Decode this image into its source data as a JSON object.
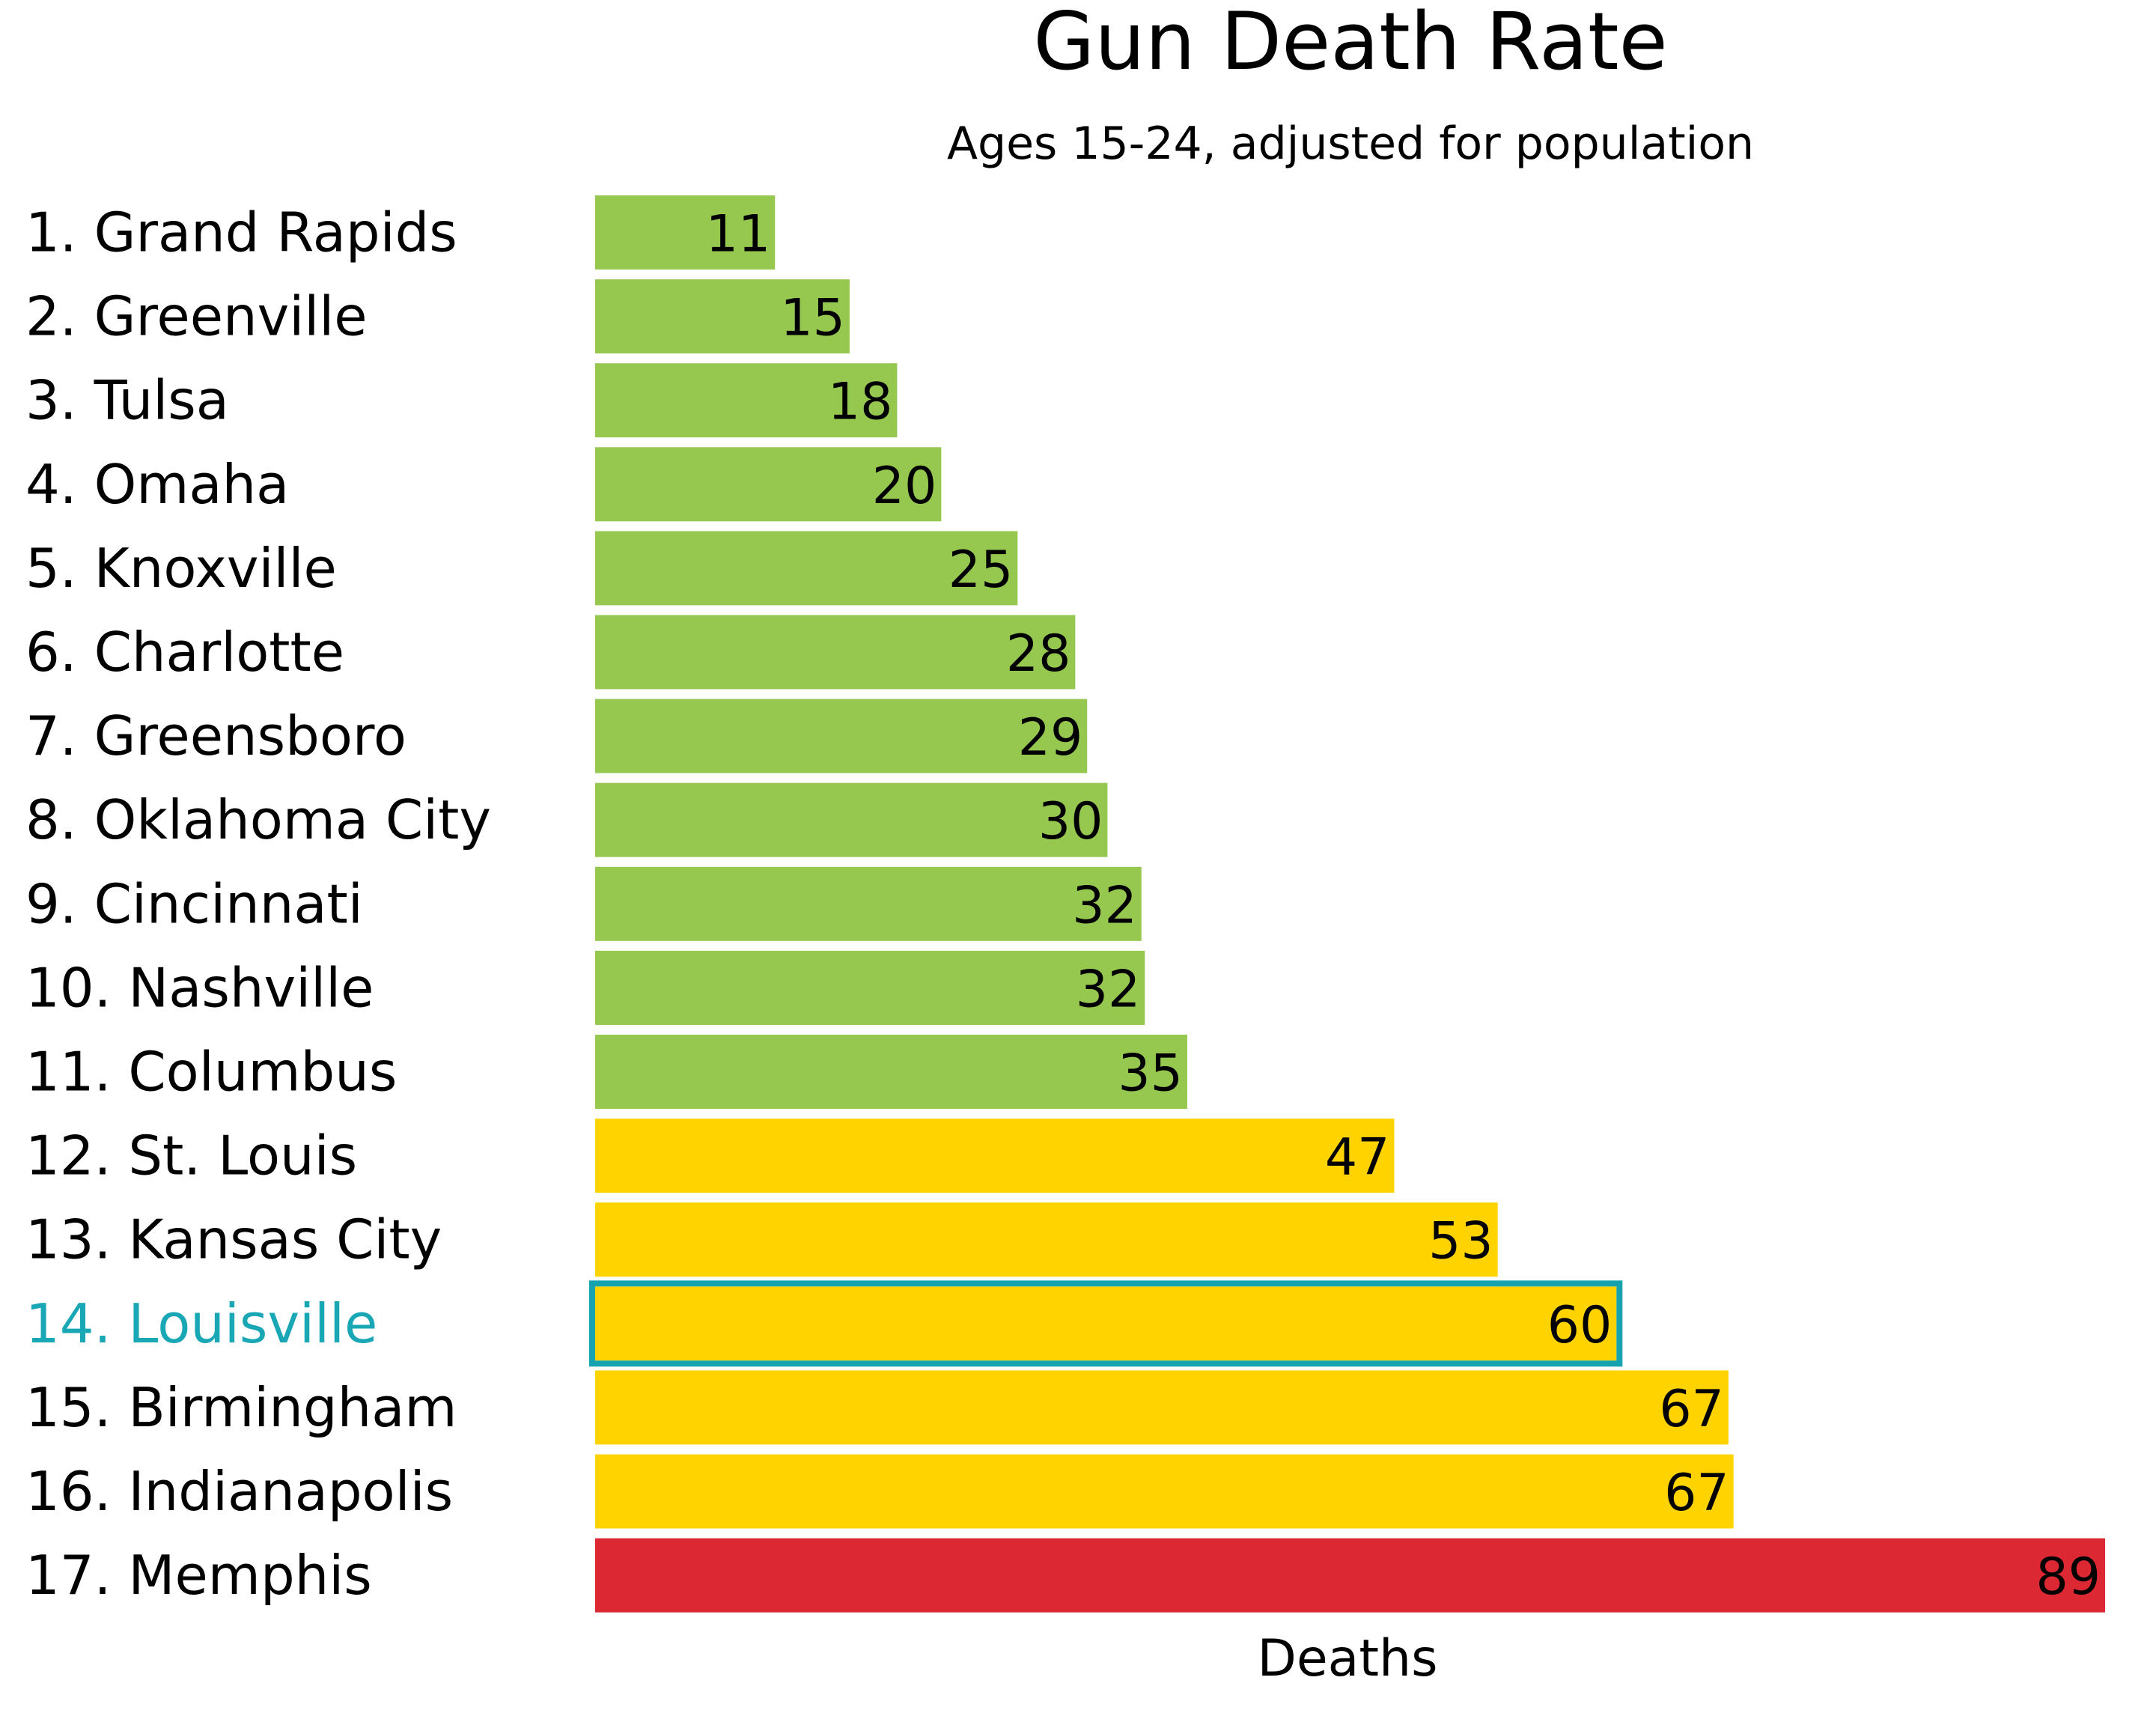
{
  "chart_data": {
    "type": "bar",
    "orientation": "horizontal",
    "title": "Gun Death Rate",
    "subtitle": "Ages 15-24, adjusted for population",
    "xlabel": "Deaths",
    "ylabel": "",
    "xlim": [
      0,
      89
    ],
    "grid": false,
    "legend": "none",
    "categories": [
      "1. Grand Rapids",
      "2. Greenville",
      "3. Tulsa",
      "4. Omaha",
      "5. Knoxville",
      "6. Charlotte",
      "7. Greensboro",
      "8. Oklahoma City",
      "9. Cincinnati",
      "10. Nashville",
      "11. Columbus",
      "12. St. Louis",
      "13. Kansas City",
      "14. Louisville",
      "15. Birmingham",
      "16. Indianapolis",
      "17. Memphis"
    ],
    "values": [
      10.6,
      15,
      17.8,
      20.4,
      24.9,
      28.3,
      29,
      30.2,
      32.2,
      32.4,
      34.9,
      47.1,
      53.2,
      60.2,
      66.8,
      67.1,
      89
    ],
    "value_labels": [
      "11",
      "15",
      "18",
      "20",
      "25",
      "28",
      "29",
      "30",
      "32",
      "32",
      "35",
      "47",
      "53",
      "60",
      "67",
      "67",
      "89"
    ],
    "bar_colors": [
      "#96c850",
      "#96c850",
      "#96c850",
      "#96c850",
      "#96c850",
      "#96c850",
      "#96c850",
      "#96c850",
      "#96c850",
      "#96c850",
      "#96c850",
      "#ffd300",
      "#ffd300",
      "#ffd300",
      "#ffd300",
      "#ffd300",
      "#dc2832"
    ],
    "highlight": {
      "category": "14. Louisville",
      "label_color": "#1aa7b5",
      "outline_color": "#17a2b0"
    },
    "label_color": "#000000"
  }
}
